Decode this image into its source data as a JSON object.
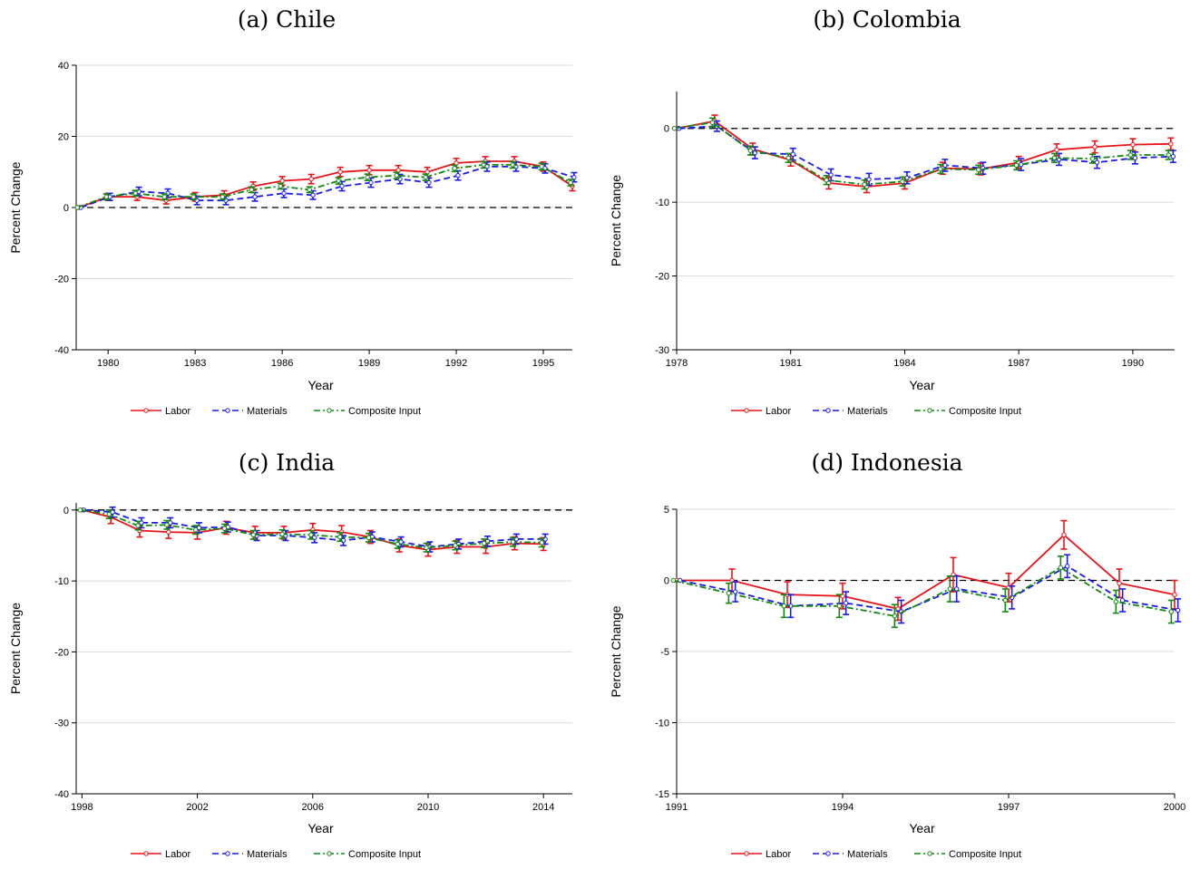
{
  "legend": [
    "Labor",
    "Materials",
    "Composite Input"
  ],
  "colors": {
    "Labor": "#e8141a",
    "Materials": "#1a1aee",
    "Composite Input": "#118811"
  },
  "chart_data": [
    {
      "type": "line",
      "title": "(a) Chile",
      "xlabel": "Year",
      "ylabel": "Percent Change",
      "xlim": [
        1978.9,
        1996
      ],
      "ylim": [
        -40,
        40
      ],
      "xticks": [
        1980,
        1983,
        1986,
        1989,
        1992,
        1995
      ],
      "yticks": [
        -40,
        -20,
        0,
        20,
        40
      ],
      "grid": "horizontal",
      "zero_line": "dashed",
      "legend_position": "bottom",
      "x": [
        1979,
        1980,
        1981,
        1982,
        1983,
        1984,
        1985,
        1986,
        1987,
        1988,
        1989,
        1990,
        1991,
        1992,
        1993,
        1994,
        1995,
        1996
      ],
      "series": [
        {
          "name": "Labor",
          "values": [
            0,
            3,
            3,
            2,
            3,
            3.5,
            6,
            7.5,
            8,
            10,
            10.5,
            10.5,
            10,
            12.5,
            13,
            13,
            11.5,
            6
          ],
          "ci": [
            0,
            1,
            1,
            1,
            1.2,
            1.2,
            1.2,
            1.2,
            1.3,
            1.3,
            1.3,
            1.3,
            1.3,
            1.3,
            1.3,
            1.3,
            1.3,
            1.3
          ]
        },
        {
          "name": "Materials",
          "values": [
            0,
            3,
            4.5,
            4,
            2,
            2,
            3,
            4,
            3.5,
            6,
            7,
            8,
            7,
            9,
            11.5,
            11.5,
            11,
            8.5
          ],
          "ci": [
            0,
            1,
            1.2,
            1.2,
            1.2,
            1.2,
            1.2,
            1.2,
            1.2,
            1.3,
            1.3,
            1.3,
            1.3,
            1.3,
            1.3,
            1.3,
            1.3,
            1.3
          ]
        },
        {
          "name": "Composite Input",
          "values": [
            0,
            3,
            4,
            3,
            3,
            3,
            5,
            6,
            5,
            7.5,
            8.5,
            9,
            8.5,
            11,
            12,
            12,
            11.5,
            7
          ],
          "ci": [
            0,
            0.8,
            0.8,
            0.8,
            0.8,
            0.8,
            0.8,
            0.8,
            0.8,
            0.9,
            0.9,
            0.9,
            0.9,
            0.9,
            0.9,
            0.9,
            0.9,
            0.9
          ]
        }
      ]
    },
    {
      "type": "line",
      "title": "(b) Colombia",
      "xlabel": "Year",
      "ylabel": "Percent Change",
      "xlim": [
        1978,
        1991.1
      ],
      "ylim": [
        -30,
        5
      ],
      "xticks": [
        1978,
        1981,
        1984,
        1987,
        1990
      ],
      "yticks": [
        -30,
        -20,
        -10,
        0
      ],
      "grid": "horizontal",
      "zero_line": "dashed",
      "legend_position": "bottom",
      "x": [
        1978,
        1979,
        1980,
        1981,
        1982,
        1983,
        1984,
        1985,
        1986,
        1987,
        1988,
        1989,
        1990,
        1991
      ],
      "series": [
        {
          "name": "Labor",
          "values": [
            0,
            1,
            -2.8,
            -4.3,
            -7.4,
            -7.9,
            -7.4,
            -5.4,
            -5.5,
            -4.6,
            -2.9,
            -2.5,
            -2.2,
            -2.1
          ],
          "ci": [
            0,
            0.8,
            0.8,
            0.8,
            0.8,
            0.8,
            0.8,
            0.8,
            0.8,
            0.8,
            0.8,
            0.8,
            0.8,
            0.8
          ]
        },
        {
          "name": "Materials",
          "values": [
            0,
            0.3,
            -3.3,
            -3.5,
            -6.3,
            -6.9,
            -6.7,
            -5,
            -5.4,
            -4.9,
            -4.2,
            -4.6,
            -4,
            -3.8
          ],
          "ci": [
            0,
            0.7,
            0.8,
            0.8,
            0.8,
            0.8,
            0.8,
            0.8,
            0.8,
            0.8,
            0.8,
            0.8,
            0.8,
            0.8
          ]
        },
        {
          "name": "Composite Input",
          "values": [
            0,
            0.8,
            -3,
            -4,
            -7,
            -7.6,
            -7.2,
            -5.5,
            -5.6,
            -5,
            -4,
            -4.1,
            -3.6,
            -3.6
          ],
          "ci": [
            0,
            0.6,
            0.6,
            0.6,
            0.6,
            0.6,
            0.6,
            0.6,
            0.6,
            0.6,
            0.6,
            0.6,
            0.6,
            0.6
          ]
        }
      ]
    },
    {
      "type": "line",
      "title": "(c) India",
      "xlabel": "Year",
      "ylabel": "Percent Change",
      "xlim": [
        1997.8,
        2015
      ],
      "ylim": [
        -40,
        1
      ],
      "xticks": [
        1998,
        2002,
        2006,
        2010,
        2014
      ],
      "yticks": [
        -40,
        -30,
        -20,
        -10,
        0
      ],
      "grid": "horizontal",
      "zero_line": "dashed",
      "legend_position": "bottom",
      "x": [
        1998,
        1999,
        2000,
        2001,
        2002,
        2003,
        2004,
        2005,
        2006,
        2007,
        2008,
        2009,
        2010,
        2011,
        2012,
        2013,
        2014
      ],
      "series": [
        {
          "name": "Labor",
          "values": [
            0,
            -1,
            -2.9,
            -3.1,
            -3.2,
            -2.5,
            -3.2,
            -3.2,
            -2.8,
            -3.1,
            -3.8,
            -5,
            -5.6,
            -5.2,
            -5.2,
            -4.7,
            -4.8
          ],
          "ci": [
            0,
            0.9,
            0.9,
            0.9,
            0.9,
            0.9,
            0.9,
            0.9,
            0.9,
            0.9,
            0.9,
            0.9,
            0.9,
            0.9,
            0.9,
            0.9,
            0.9
          ]
        },
        {
          "name": "Materials",
          "values": [
            0,
            -0.3,
            -1.8,
            -1.8,
            -2.5,
            -2.4,
            -3.6,
            -3.6,
            -3.9,
            -4.3,
            -3.8,
            -4.5,
            -5.2,
            -4.8,
            -4.4,
            -4.1,
            -4.1
          ],
          "ci": [
            0,
            0.7,
            0.7,
            0.7,
            0.7,
            0.7,
            0.7,
            0.7,
            0.7,
            0.7,
            0.7,
            0.7,
            0.7,
            0.7,
            0.7,
            0.7,
            0.7
          ]
        },
        {
          "name": "Composite Input",
          "values": [
            0,
            -0.6,
            -2.2,
            -2.1,
            -2.8,
            -2.6,
            -3.5,
            -3.4,
            -3.5,
            -3.8,
            -3.9,
            -4.8,
            -5.3,
            -5,
            -4.7,
            -4.5,
            -4.6
          ],
          "ci": [
            0,
            0.6,
            0.6,
            0.6,
            0.6,
            0.6,
            0.6,
            0.6,
            0.6,
            0.6,
            0.6,
            0.6,
            0.6,
            0.6,
            0.6,
            0.6,
            0.6
          ]
        }
      ]
    },
    {
      "type": "line",
      "title": "(d) Indonesia",
      "xlabel": "Year",
      "ylabel": "Percent Change",
      "xlim": [
        1991,
        2000
      ],
      "ylim": [
        -15,
        5
      ],
      "xticks": [
        1991,
        1994,
        1997,
        2000
      ],
      "yticks": [
        -15,
        -10,
        -5,
        0,
        5
      ],
      "grid": "horizontal",
      "zero_line": "dashed",
      "legend_position": "bottom",
      "x": [
        1991,
        1992,
        1993,
        1994,
        1995,
        1996,
        1997,
        1998,
        1999,
        2000
      ],
      "series": [
        {
          "name": "Labor",
          "values": [
            0,
            0,
            -1,
            -1.1,
            -2,
            0.4,
            -0.5,
            3.2,
            -0.2,
            -1
          ],
          "ci": [
            0,
            0.8,
            0.9,
            0.9,
            0.8,
            1.2,
            1,
            1,
            1,
            1
          ]
        },
        {
          "name": "Materials",
          "values": [
            0,
            -0.8,
            -1.8,
            -1.6,
            -2.2,
            -0.6,
            -1.2,
            1,
            -1.4,
            -2.1
          ],
          "ci": [
            0,
            0.7,
            0.8,
            0.8,
            0.8,
            0.9,
            0.8,
            0.8,
            0.8,
            0.8
          ]
        },
        {
          "name": "Composite Input",
          "values": [
            0,
            -0.9,
            -1.8,
            -1.8,
            -2.5,
            -0.6,
            -1.4,
            0.9,
            -1.5,
            -2.2
          ],
          "ci": [
            0,
            0.7,
            0.8,
            0.8,
            0.8,
            0.9,
            0.8,
            0.8,
            0.8,
            0.8
          ]
        }
      ]
    }
  ]
}
